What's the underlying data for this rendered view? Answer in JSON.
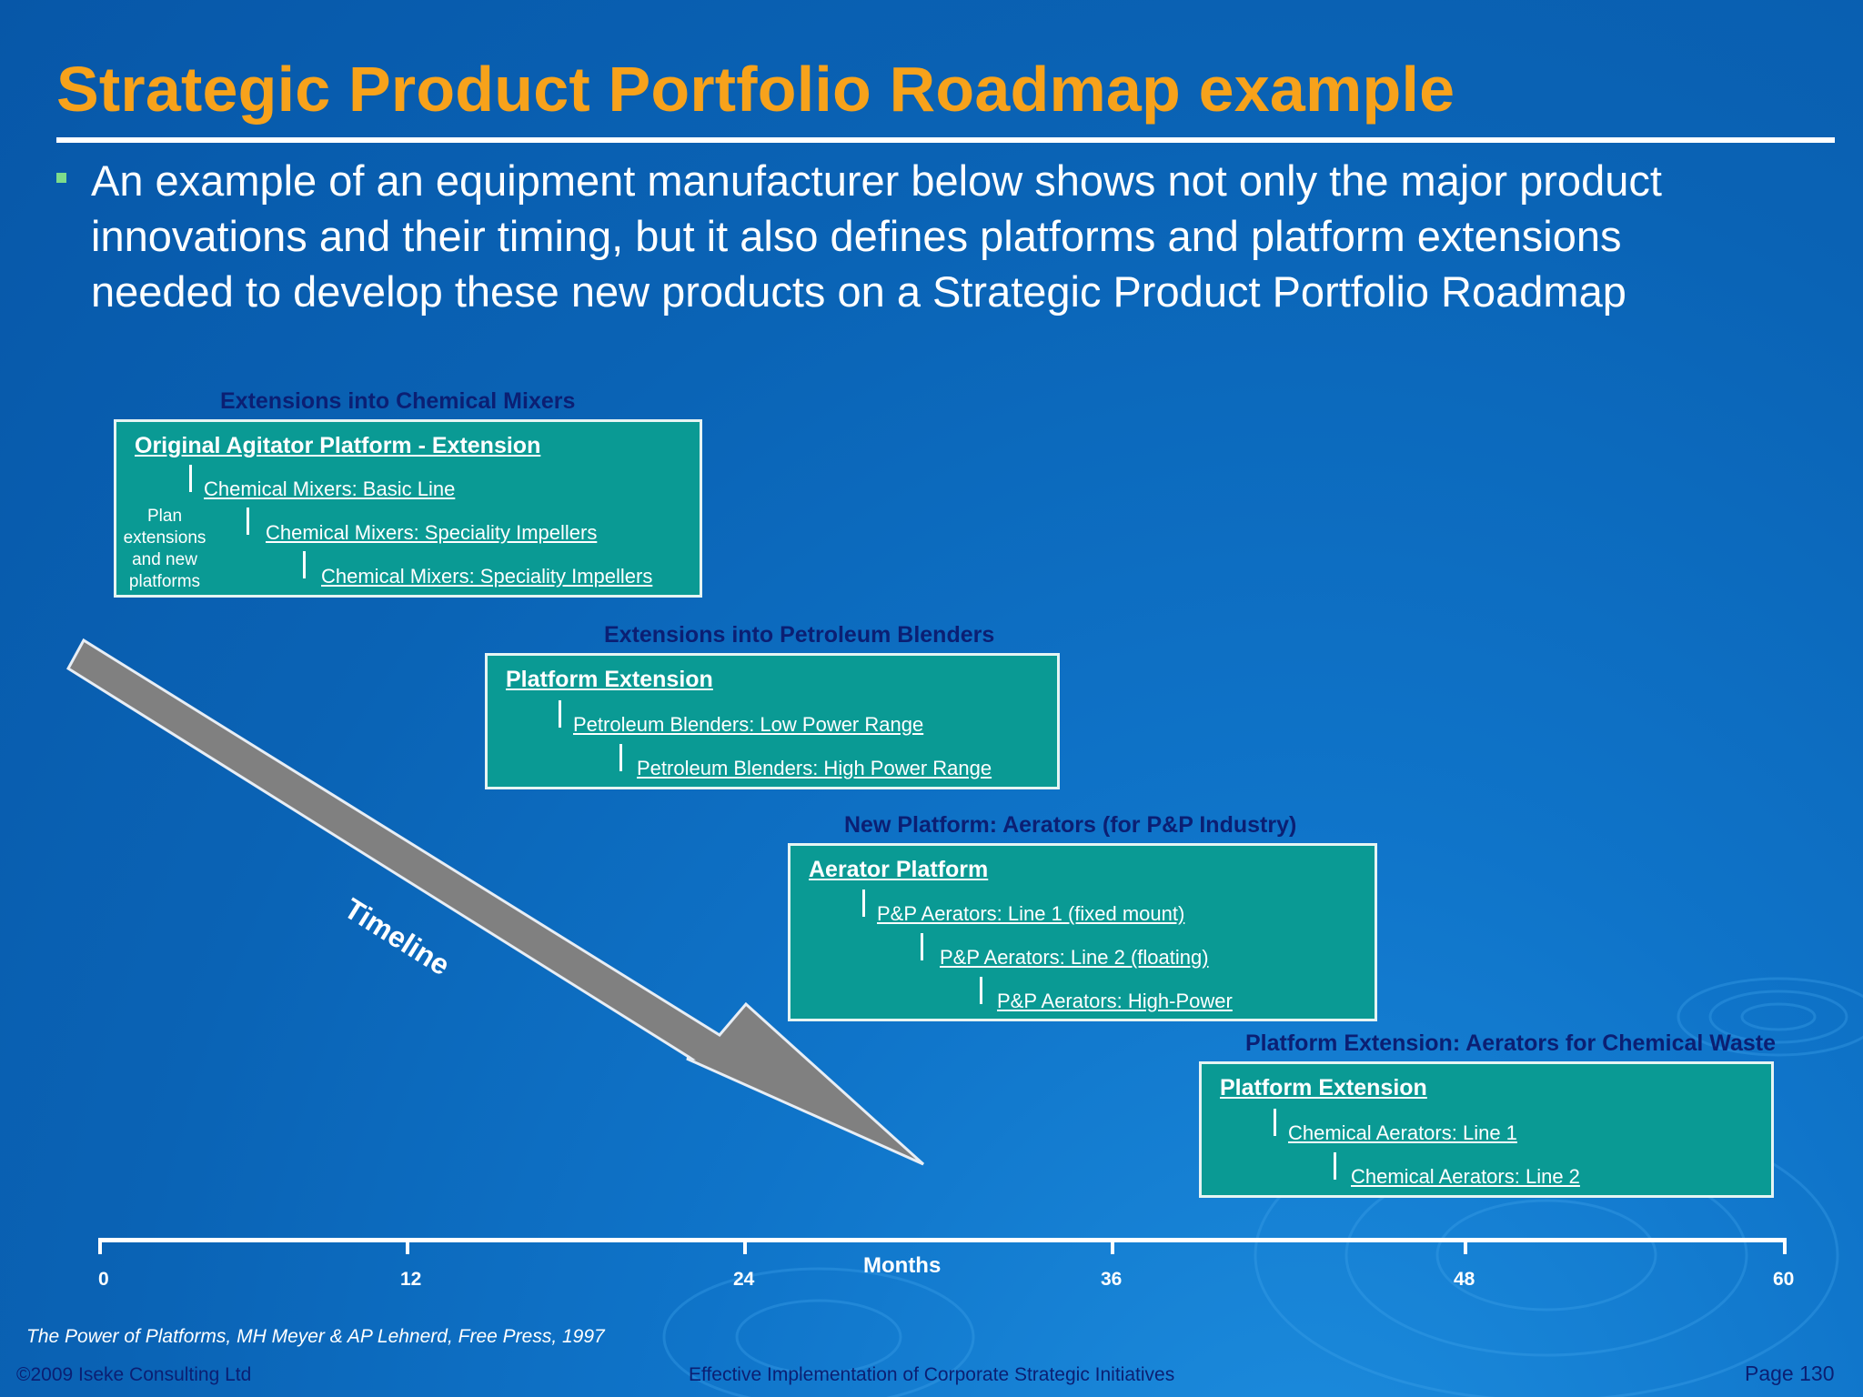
{
  "header": {
    "title": "Strategic Product Portfolio Roadmap example",
    "bullet_lines": [
      "An example of an equipment manufacturer below shows not only the major product",
      "innovations and their timing, but it also defines platforms and platform extensions",
      "needed to develop these new products on a Strategic Product Portfolio Roadmap"
    ]
  },
  "groups": [
    {
      "label": "Extensions into Chemical Mixers",
      "box_title": "Original Agitator Platform - Extension",
      "items": [
        "Chemical Mixers: Basic Line",
        "Chemical Mixers: Speciality Impellers",
        "Chemical Mixers: Speciality Impellers"
      ],
      "note": "Plan extensions and new platforms"
    },
    {
      "label": "Extensions into Petroleum Blenders",
      "box_title": "Platform Extension",
      "items": [
        "Petroleum Blenders: Low Power Range",
        "Petroleum Blenders: High Power Range"
      ]
    },
    {
      "label": "New Platform: Aerators (for P&P Industry)",
      "box_title": "Aerator Platform",
      "items": [
        "P&P Aerators: Line 1 (fixed mount)",
        "P&P Aerators: Line 2 (floating)",
        "P&P Aerators: High-Power"
      ]
    },
    {
      "label": "Platform Extension: Aerators for Chemical Waste",
      "box_title": "Platform Extension",
      "items": [
        "Chemical Aerators: Line 1",
        "Chemical Aerators: Line 2"
      ]
    }
  ],
  "timeline_arrow_label": "Timeline",
  "axis": {
    "title": "Months",
    "ticks": [
      "0",
      "12",
      "24",
      "36",
      "48",
      "60"
    ]
  },
  "footnote": "The Power of Platforms, MH Meyer & AP Lehnerd, Free Press, 1997",
  "footer": {
    "copyright": "©2009 Iseke Consulting Ltd",
    "center": "Effective Implementation of Corporate Strategic Initiatives",
    "page": "Page 130"
  },
  "colors": {
    "title": "#f7a21b",
    "box_fill": "#0a9a94",
    "group_label": "#0b1f73",
    "arrow": "#808080"
  }
}
